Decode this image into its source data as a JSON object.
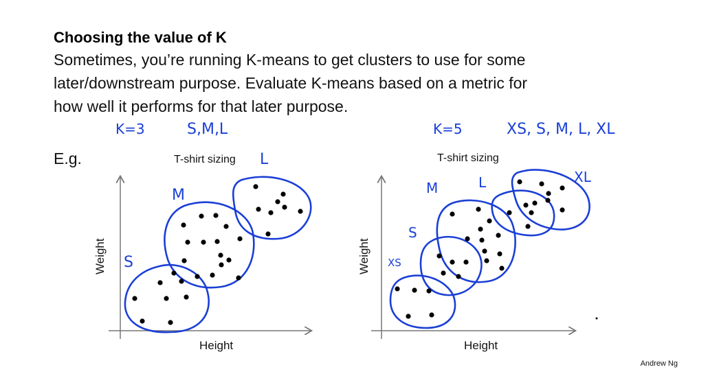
{
  "slide": {
    "title": "Choosing the value of K",
    "lines": [
      "Sometimes, you’re running K-means to get clusters to use for some",
      "later/downstream purpose. Evaluate K-means based on a metric for",
      "how well it performs for that later purpose."
    ],
    "eg": "E.g.",
    "credit": "Andrew Ng"
  },
  "left_plot": {
    "annotation_k": "K=3",
    "annotation_sizes": "S,M,L",
    "title": "T-shirt sizing",
    "xlabel": "Height",
    "ylabel": "Weight",
    "cluster_labels": [
      "S",
      "M",
      "L"
    ]
  },
  "right_plot": {
    "annotation_k": "K=5",
    "annotation_sizes": "XS, S, M, L, XL",
    "title": "T-shirt sizing",
    "xlabel": "Height",
    "ylabel": "Weight",
    "cluster_labels": [
      "XS",
      "S",
      "M",
      "L",
      "XL"
    ]
  },
  "colors": {
    "ink": "#1a3fd6",
    "text": "#111111"
  }
}
